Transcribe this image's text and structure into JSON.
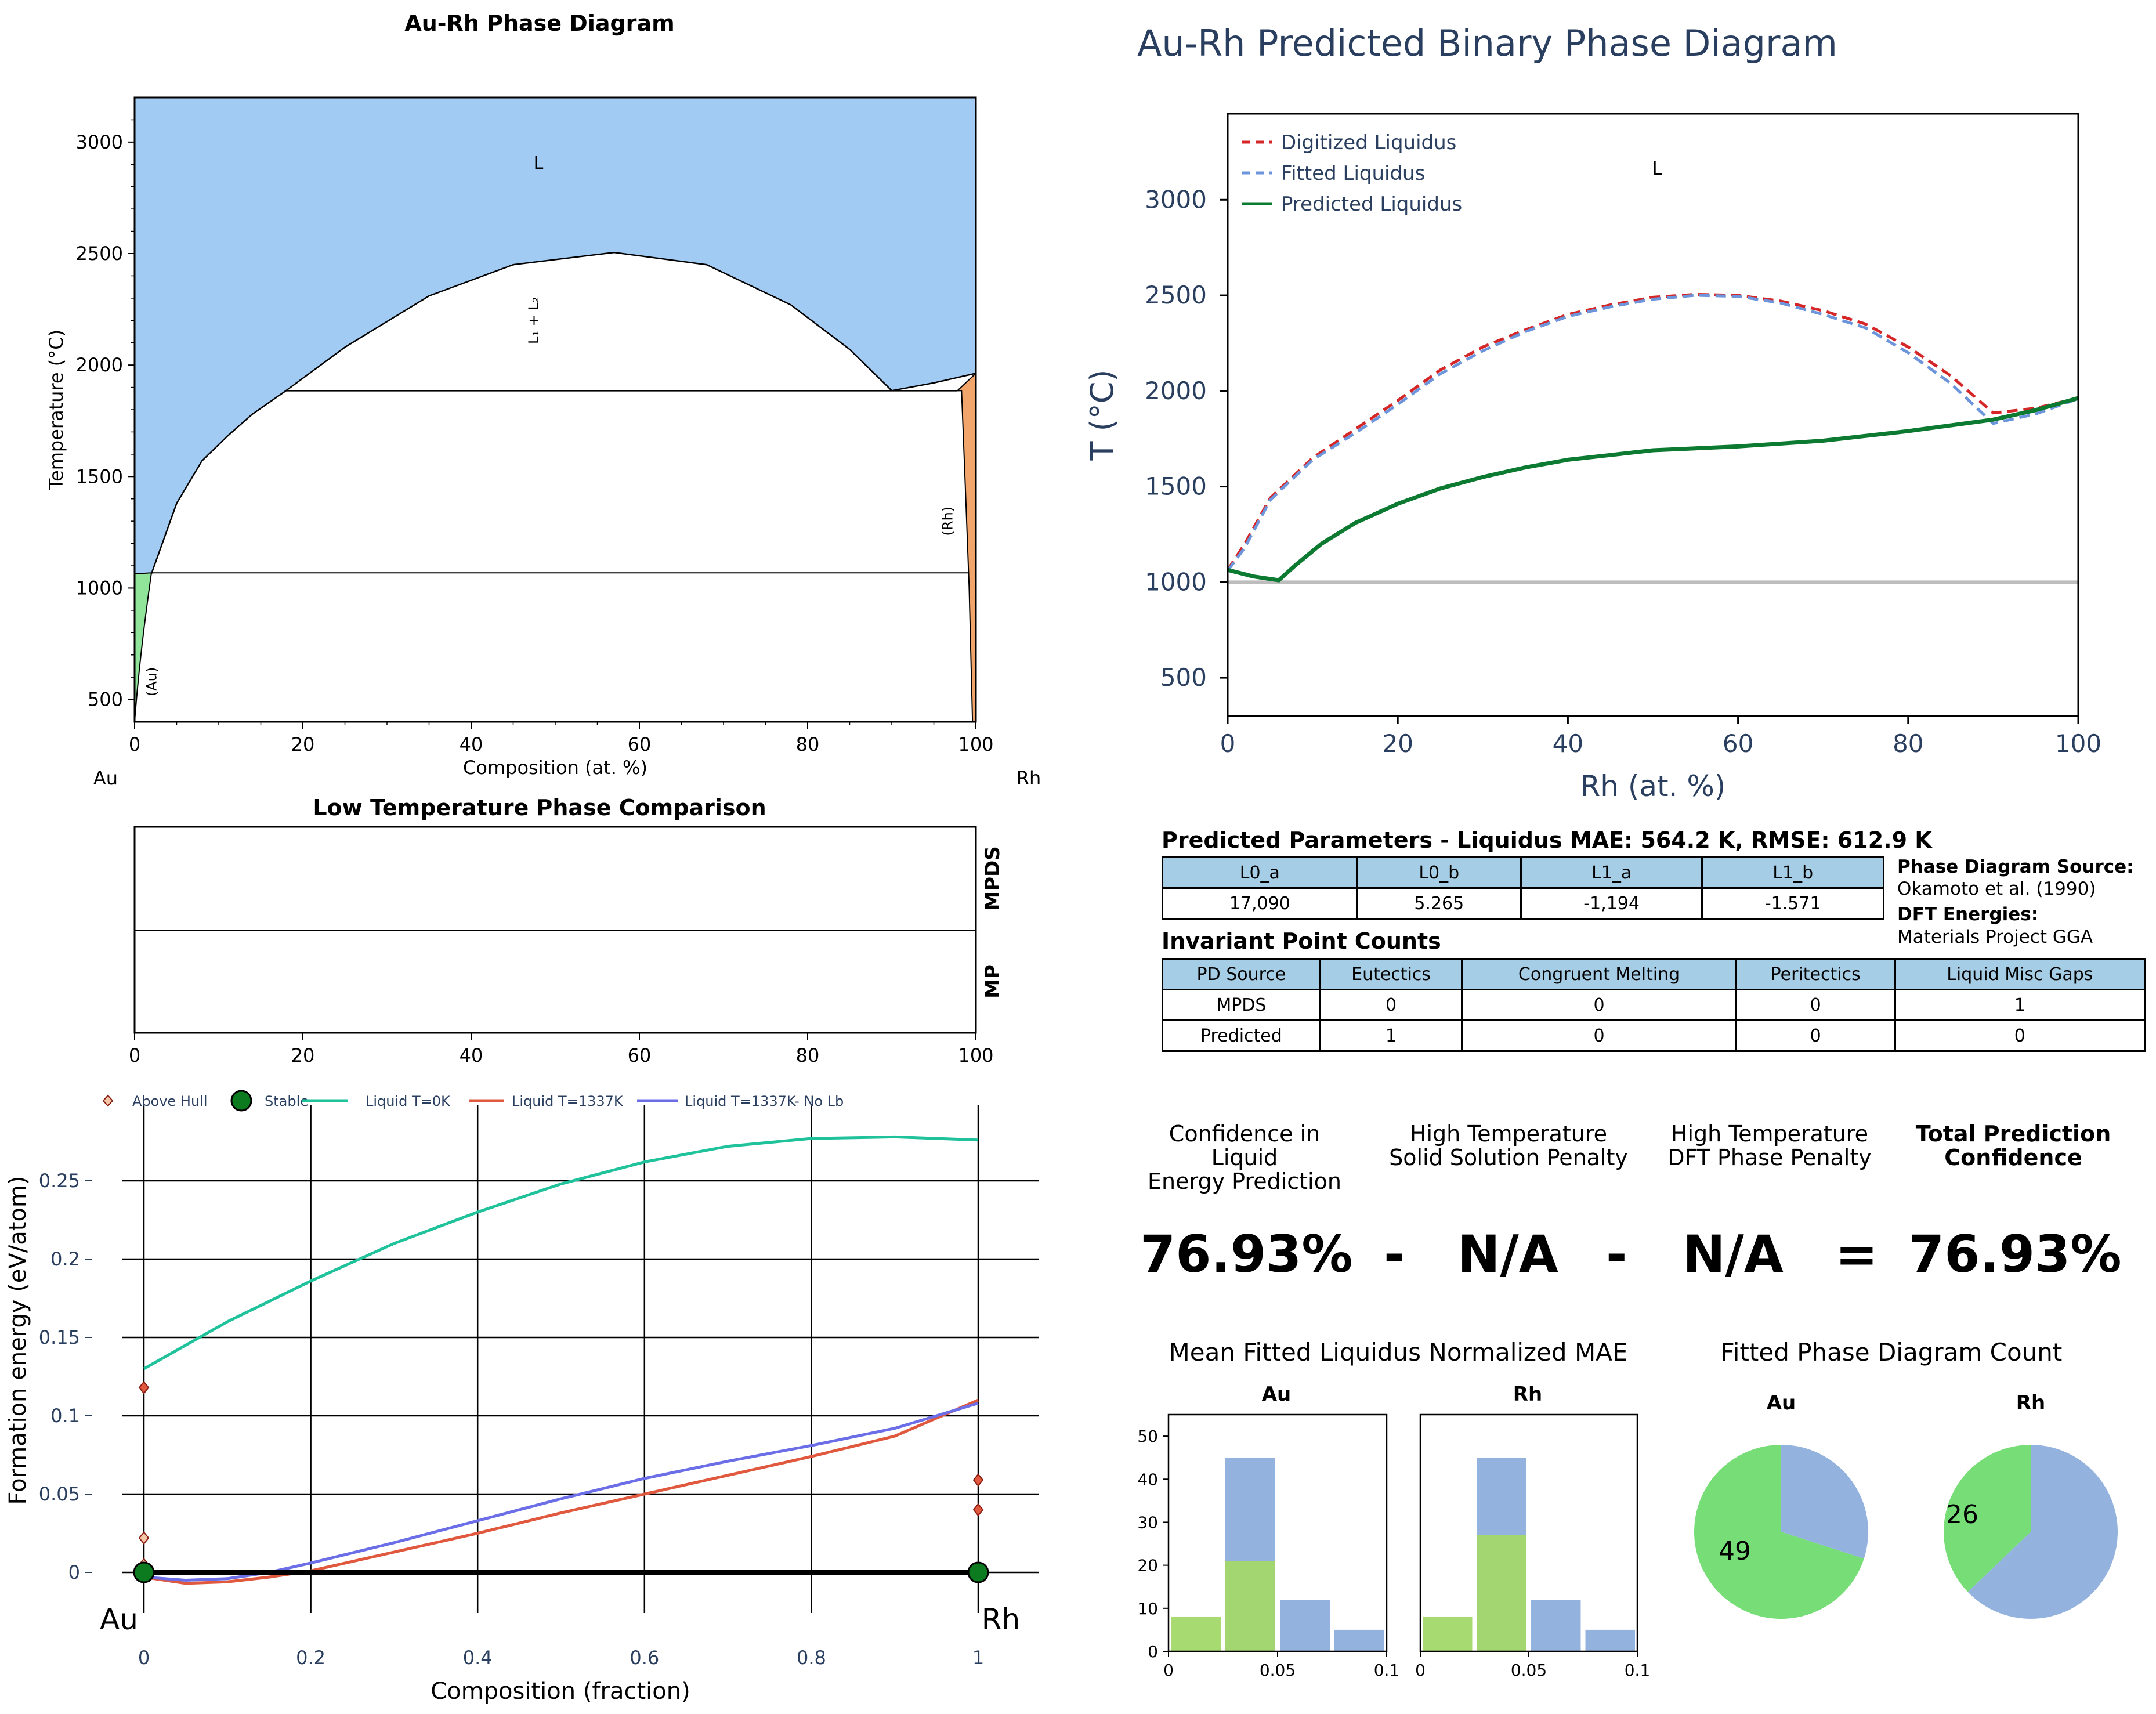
{
  "left_phase": {
    "title": "Au-Rh Phase Diagram",
    "xlabel": "Composition (at. %)",
    "ylabel": "Temperature (°C)",
    "xticks": [
      "0",
      "20",
      "40",
      "60",
      "80",
      "100"
    ],
    "yticks": [
      "500",
      "1000",
      "1500",
      "2000",
      "2500",
      "3000"
    ],
    "left_element": "Au",
    "right_element": "Rh",
    "labels": {
      "liquid": "L",
      "misc": "L₁ + L₂",
      "au": "(Au)",
      "rh": "(Rh)"
    },
    "colors": {
      "liquid": "#a2cbf4",
      "au_solid": "#90e59a",
      "rh_solid": "#f1a56b"
    }
  },
  "low_temp": {
    "title": "Low Temperature Phase Comparison",
    "row_labels": [
      "MPDS",
      "MP"
    ],
    "xticks": [
      "0",
      "20",
      "40",
      "60",
      "80",
      "100"
    ]
  },
  "formation": {
    "xlabel": "Composition (fraction)",
    "ylabel": "Formation energy (eV/atom)",
    "xticks": [
      "0",
      "0.2",
      "0.4",
      "0.6",
      "0.8",
      "1"
    ],
    "yticks": [
      "0",
      "0.05",
      "0.1",
      "0.15",
      "0.2",
      "0.25"
    ],
    "left_element": "Au",
    "right_element": "Rh",
    "legend": [
      "Above Hull",
      "Stable",
      "Liquid T=0K",
      "Liquid T=1337K",
      "Liquid T=1337K- No Lb"
    ]
  },
  "predicted": {
    "title": "Au-Rh Predicted Binary Phase Diagram",
    "xlabel": "Rh (at. %)",
    "ylabel": "T (°C)",
    "xticks": [
      "0",
      "20",
      "40",
      "60",
      "80",
      "100"
    ],
    "yticks": [
      "500",
      "1000",
      "1500",
      "2000",
      "2500",
      "3000"
    ],
    "liquid_label": "L",
    "legend": [
      "Digitized Liquidus",
      "Fitted Liquidus",
      "Predicted Liquidus"
    ]
  },
  "params": {
    "title": "Predicted Parameters - Liquidus MAE: 564.2 K, RMSE: 612.9 K",
    "headers": [
      "L0_a",
      "L0_b",
      "L1_a",
      "L1_b"
    ],
    "values": [
      "17,090",
      "5.265",
      "-1,194",
      "-1.571"
    ]
  },
  "sources": {
    "pd_label": "Phase Diagram Source:",
    "pd_value": "Okamoto et al. (1990)",
    "dft_label": "DFT Energies:",
    "dft_value": "Materials Project GGA"
  },
  "invariants": {
    "title": "Invariant Point Counts",
    "headers": [
      "PD Source",
      "Eutectics",
      "Congruent Melting",
      "Peritectics",
      "Liquid Misc Gaps"
    ],
    "rows": [
      [
        "MPDS",
        "0",
        "0",
        "0",
        "1"
      ],
      [
        "Predicted",
        "1",
        "0",
        "0",
        "0"
      ]
    ]
  },
  "confidence": {
    "h1": "Confidence in Liquid",
    "h1b": "Energy Prediction",
    "h2": "High Temperature",
    "h2b": "Solid Solution Penalty",
    "h3": "High Temperature",
    "h3b": "DFT Phase Penalty",
    "h4": "Total Prediction",
    "h4b": "Confidence",
    "v1": "76.93%",
    "op1": "-",
    "v2": "N/A",
    "op2": "-",
    "v3": "N/A",
    "op3": "=",
    "v4": "76.93%"
  },
  "mae_panel": {
    "title": "Mean Fitted Liquidus Normalized MAE",
    "subtitles": [
      "Au",
      "Rh"
    ],
    "yticks": [
      "0",
      "10",
      "20",
      "30",
      "40",
      "50"
    ],
    "xticks": [
      "0",
      "0.05",
      "0.1"
    ]
  },
  "count_panel": {
    "title": "Fitted Phase Diagram Count",
    "subtitles": [
      "Au",
      "Rh"
    ]
  },
  "chart_data": [
    {
      "type": "area",
      "title": "Au-Rh Phase Diagram",
      "xlabel": "Composition (at. %)",
      "ylabel": "Temperature (°C)",
      "xlim": [
        0,
        100
      ],
      "ylim": [
        400,
        3200
      ],
      "regions": [
        "L",
        "L₁ + L₂",
        "(Au)",
        "(Rh)"
      ],
      "liquidus": [
        [
          0,
          1064
        ],
        [
          2,
          1064
        ],
        [
          5,
          1380
        ],
        [
          8,
          1570
        ],
        [
          11,
          1680
        ],
        [
          14,
          1780
        ],
        [
          18,
          1885
        ],
        [
          90,
          1885
        ],
        [
          95,
          1920
        ],
        [
          100,
          1963
        ]
      ],
      "misc_dome": [
        [
          18,
          1885
        ],
        [
          25,
          2080
        ],
        [
          35,
          2310
        ],
        [
          45,
          2450
        ],
        [
          57,
          2505
        ],
        [
          68,
          2450
        ],
        [
          78,
          2270
        ],
        [
          85,
          2070
        ],
        [
          90,
          1885
        ]
      ],
      "horizontal_lines": [
        1885,
        1068
      ],
      "rh_solid_boundary": [
        [
          98.3,
          1885
        ],
        [
          98.8,
          1400
        ],
        [
          99.2,
          1000
        ],
        [
          99.6,
          400
        ]
      ]
    },
    {
      "type": "line",
      "title": "Low Temperature Phase Comparison",
      "xlim": [
        0,
        100
      ],
      "rows": [
        "MPDS",
        "MP"
      ]
    },
    {
      "type": "line",
      "xlabel": "Composition (fraction)",
      "ylabel": "Formation energy (eV/atom)",
      "xlim": [
        -0.02,
        1.05
      ],
      "ylim": [
        -0.03,
        0.29
      ],
      "series": [
        {
          "name": "Liquid T=0K",
          "x": [
            0,
            0.1,
            0.2,
            0.3,
            0.4,
            0.5,
            0.6,
            0.7,
            0.8,
            0.9,
            1.0
          ],
          "y": [
            0.13,
            0.16,
            0.186,
            0.21,
            0.23,
            0.248,
            0.262,
            0.272,
            0.277,
            0.278,
            0.276
          ]
        },
        {
          "name": "Liquid T=1337K",
          "x": [
            0,
            0.05,
            0.1,
            0.15,
            0.2,
            0.3,
            0.4,
            0.5,
            0.6,
            0.7,
            0.8,
            0.9,
            1.0
          ],
          "y": [
            -0.003,
            -0.007,
            -0.006,
            -0.003,
            0.001,
            0.013,
            0.025,
            0.038,
            0.05,
            0.062,
            0.074,
            0.087,
            0.11
          ]
        },
        {
          "name": "Liquid T=1337K- No Lb",
          "x": [
            0,
            0.05,
            0.1,
            0.15,
            0.2,
            0.3,
            0.4,
            0.5,
            0.6,
            0.7,
            0.8,
            0.9,
            1.0
          ],
          "y": [
            -0.003,
            -0.005,
            -0.004,
            0.0,
            0.006,
            0.019,
            0.033,
            0.047,
            0.06,
            0.071,
            0.081,
            0.092,
            0.108
          ]
        },
        {
          "name": "Above Hull",
          "points": [
            [
              0,
              0.118
            ],
            [
              0,
              0.022
            ],
            [
              0,
              0.005
            ],
            [
              1,
              0.059
            ],
            [
              1,
              0.04
            ]
          ]
        },
        {
          "name": "Stable",
          "points": [
            [
              0,
              0
            ],
            [
              1,
              0
            ]
          ]
        }
      ]
    },
    {
      "type": "line",
      "title": "Au-Rh Predicted Binary Phase Diagram",
      "xlabel": "Rh (at. %)",
      "ylabel": "T (°C)",
      "xlim": [
        0,
        100
      ],
      "ylim": [
        300,
        3450
      ],
      "reference_line": 1000,
      "series": [
        {
          "name": "Digitized Liquidus",
          "x": [
            0,
            2,
            5,
            10,
            15,
            20,
            25,
            30,
            35,
            40,
            45,
            50,
            55,
            60,
            65,
            70,
            75,
            80,
            85,
            90,
            95,
            100
          ],
          "y": [
            1064,
            1200,
            1440,
            1650,
            1800,
            1950,
            2110,
            2230,
            2320,
            2400,
            2450,
            2490,
            2505,
            2500,
            2470,
            2420,
            2350,
            2230,
            2080,
            1885,
            1910,
            1963
          ]
        },
        {
          "name": "Fitted Liquidus",
          "x": [
            0,
            2,
            5,
            10,
            15,
            20,
            25,
            30,
            35,
            40,
            45,
            50,
            55,
            60,
            65,
            70,
            75,
            80,
            85,
            90,
            95,
            100
          ],
          "y": [
            1060,
            1180,
            1430,
            1640,
            1780,
            1930,
            2090,
            2210,
            2310,
            2390,
            2440,
            2480,
            2500,
            2495,
            2460,
            2400,
            2330,
            2200,
            2040,
            1830,
            1880,
            1960
          ]
        },
        {
          "name": "Predicted Liquidus",
          "x": [
            0,
            3,
            6,
            8,
            11,
            15,
            20,
            25,
            30,
            35,
            40,
            45,
            50,
            60,
            70,
            80,
            85,
            90,
            95,
            100
          ],
          "y": [
            1064,
            1030,
            1010,
            1090,
            1200,
            1310,
            1410,
            1490,
            1550,
            1600,
            1640,
            1665,
            1690,
            1710,
            1740,
            1790,
            1820,
            1850,
            1900,
            1963
          ]
        }
      ]
    },
    {
      "type": "bar",
      "title": "Au",
      "x": [
        0.0125,
        0.0375,
        0.0625,
        0.0875
      ],
      "series": [
        {
          "name": "green",
          "values": [
            8,
            21,
            0,
            0
          ]
        },
        {
          "name": "blue",
          "values": [
            0,
            45,
            12,
            5
          ]
        }
      ],
      "xlim": [
        0,
        0.1
      ],
      "ylim": [
        0,
        55
      ]
    },
    {
      "type": "bar",
      "title": "Rh",
      "x": [
        0.0125,
        0.0375,
        0.0625,
        0.0875
      ],
      "series": [
        {
          "name": "green",
          "values": [
            8,
            27,
            0,
            0
          ]
        },
        {
          "name": "blue",
          "values": [
            0,
            45,
            12,
            5
          ]
        }
      ],
      "xlim": [
        0,
        0.1
      ],
      "ylim": [
        0,
        55
      ]
    },
    {
      "type": "pie",
      "title": "Au",
      "labels": [
        "49",
        ""
      ],
      "values": [
        49,
        21
      ],
      "colors": [
        "#77dd77",
        "#93b3de"
      ]
    },
    {
      "type": "pie",
      "title": "Rh",
      "labels": [
        "26",
        ""
      ],
      "values": [
        26,
        44
      ],
      "colors": [
        "#77dd77",
        "#93b3de"
      ]
    }
  ]
}
